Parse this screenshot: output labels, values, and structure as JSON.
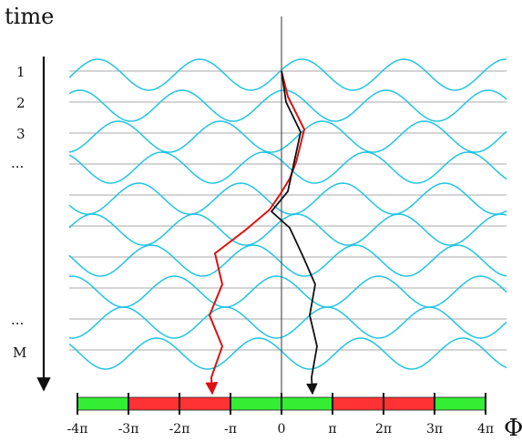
{
  "labels": {
    "time_axis": "time",
    "phase_axis": "Φ",
    "rows": [
      "1",
      "2",
      "3",
      "...",
      "...",
      "M"
    ]
  },
  "phase_ticks": [
    "-4π",
    "-3π",
    "-2π",
    "-π",
    "0",
    "π",
    "2π",
    "3π",
    "4π"
  ],
  "phase_band": [
    {
      "from": -4,
      "to": -3,
      "color": "#33ee33"
    },
    {
      "from": -3,
      "to": -1,
      "color": "#ff3333"
    },
    {
      "from": -1,
      "to": 1,
      "color": "#33ee33"
    },
    {
      "from": 1,
      "to": 3,
      "color": "#ff3333"
    },
    {
      "from": 3,
      "to": 4,
      "color": "#33ee33"
    }
  ],
  "colors": {
    "wave": "#22c4e0",
    "grid": "#a8a8a8",
    "red_path": "#dd1111",
    "black_path": "#111111",
    "green": "#33ee33",
    "red": "#ff3333"
  },
  "wave_rows": [
    {
      "phase_shift": 0.1
    },
    {
      "phase_shift": 0.45
    },
    {
      "phase_shift": -0.3
    },
    {
      "phase_shift": 0.85
    },
    {
      "phase_shift": -0.7
    },
    {
      "phase_shift": 0.2
    },
    {
      "phase_shift": -0.95
    },
    {
      "phase_shift": 0.6
    },
    {
      "phase_shift": -0.4
    },
    {
      "phase_shift": 0.95
    }
  ]
}
